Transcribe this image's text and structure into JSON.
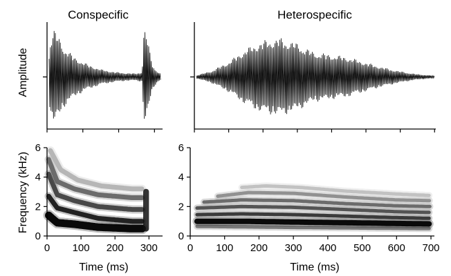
{
  "chart_data": [
    {
      "type": "line",
      "panel": "waveform",
      "title": "Conspecific",
      "ylabel": "Amplitude",
      "xlim": [
        0,
        340
      ],
      "envelope": {
        "x": [
          0,
          10,
          20,
          30,
          50,
          80,
          120,
          160,
          200,
          230,
          260,
          280,
          285,
          290,
          300,
          310,
          320,
          330,
          340
        ],
        "y": [
          0.05,
          0.75,
          0.95,
          0.85,
          0.6,
          0.4,
          0.25,
          0.15,
          0.1,
          0.08,
          0.07,
          0.1,
          0.9,
          0.95,
          0.6,
          0.25,
          0.15,
          0.08,
          0.05
        ]
      }
    },
    {
      "type": "line",
      "panel": "waveform",
      "title": "Heterospecific",
      "ylabel": "",
      "xlim": [
        0,
        710
      ],
      "envelope": {
        "x": [
          0,
          50,
          100,
          150,
          200,
          250,
          300,
          350,
          400,
          450,
          500,
          550,
          600,
          650,
          710
        ],
        "y": [
          0.02,
          0.12,
          0.3,
          0.55,
          0.72,
          0.78,
          0.68,
          0.5,
          0.45,
          0.4,
          0.3,
          0.2,
          0.12,
          0.06,
          0.02
        ]
      }
    },
    {
      "type": "heatmap",
      "panel": "spectrogram",
      "title": "",
      "xlabel": "Time (ms)",
      "ylabel": "Frequency (kHz)",
      "xlim": [
        0,
        340
      ],
      "ylim": [
        0,
        6
      ],
      "x_ticks": [
        "0",
        "100",
        "200",
        "300"
      ],
      "y_ticks": [
        "0",
        "2",
        "4",
        "6"
      ],
      "harmonics": [
        {
          "x": [
            5,
            30,
            80,
            150,
            250,
            280
          ],
          "y": [
            1.4,
            0.9,
            0.8,
            0.6,
            0.5,
            0.5
          ],
          "strength": 1.0
        },
        {
          "x": [
            5,
            30,
            80,
            150,
            250,
            280
          ],
          "y": [
            2.7,
            1.9,
            1.6,
            1.2,
            1.0,
            1.0
          ],
          "strength": 0.9
        },
        {
          "x": [
            5,
            30,
            80,
            150,
            250,
            280
          ],
          "y": [
            4.2,
            2.8,
            2.4,
            2.0,
            1.8,
            1.8
          ],
          "strength": 0.75
        },
        {
          "x": [
            5,
            30,
            80,
            150,
            250,
            280
          ],
          "y": [
            5.2,
            3.7,
            3.2,
            2.8,
            2.6,
            2.6
          ],
          "strength": 0.6
        },
        {
          "x": [
            10,
            40,
            90,
            160,
            250,
            280
          ],
          "y": [
            5.8,
            4.5,
            3.8,
            3.4,
            3.2,
            3.2
          ],
          "strength": 0.3
        }
      ],
      "burst": {
        "x_range": [
          283,
          300
        ],
        "y_range": [
          0.3,
          3.2
        ]
      }
    },
    {
      "type": "heatmap",
      "panel": "spectrogram",
      "title": "",
      "xlabel": "Time (ms)",
      "ylabel": "",
      "xlim": [
        0,
        710
      ],
      "ylim": [
        0,
        6
      ],
      "x_ticks": [
        "0",
        "100",
        "200",
        "300",
        "400",
        "500",
        "600",
        "700"
      ],
      "y_ticks": [
        "0",
        "2",
        "4",
        "6"
      ],
      "harmonics": [
        {
          "x": [
            20,
            150,
            300,
            450,
            600,
            700
          ],
          "y": [
            0.65,
            0.62,
            0.58,
            0.55,
            0.52,
            0.5
          ],
          "strength": 0.55
        },
        {
          "x": [
            20,
            150,
            300,
            450,
            600,
            700
          ],
          "y": [
            1.0,
            1.0,
            0.95,
            0.9,
            0.85,
            0.82
          ],
          "strength": 1.0
        },
        {
          "x": [
            20,
            150,
            300,
            450,
            600,
            700
          ],
          "y": [
            1.45,
            1.5,
            1.45,
            1.35,
            1.25,
            1.2
          ],
          "strength": 0.8
        },
        {
          "x": [
            20,
            150,
            300,
            450,
            600,
            700
          ],
          "y": [
            1.9,
            2.0,
            1.95,
            1.8,
            1.65,
            1.6
          ],
          "strength": 0.7
        },
        {
          "x": [
            40,
            150,
            300,
            450,
            600,
            700
          ],
          "y": [
            2.3,
            2.45,
            2.4,
            2.2,
            2.05,
            2.0
          ],
          "strength": 0.6
        },
        {
          "x": [
            80,
            170,
            300,
            450,
            600,
            700
          ],
          "y": [
            2.7,
            2.95,
            2.9,
            2.65,
            2.45,
            2.4
          ],
          "strength": 0.45
        },
        {
          "x": [
            150,
            220,
            320,
            450,
            600,
            700
          ],
          "y": [
            3.3,
            3.4,
            3.3,
            3.05,
            2.85,
            2.75
          ],
          "strength": 0.25
        }
      ]
    }
  ]
}
